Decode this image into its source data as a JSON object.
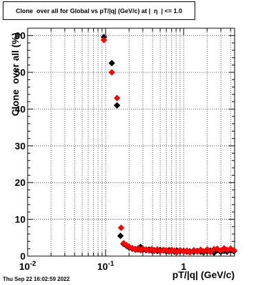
{
  "title": "Clone  over all for Global vs pT/|q| (GeV/c) at |  η  | <= 1.0",
  "timestamp": "Thu Sep 22 16:02:59 2022",
  "colors": {
    "black_series": "#000000",
    "red_series": "#ff0000",
    "grid": "#000000"
  },
  "chart_data": {
    "type": "scatter",
    "title": "Clone  over all for Global vs pT/|q| (GeV/c) at |  η  | <= 1.0",
    "xlabel": "pT/|q| (GeV/c)",
    "ylabel": "Clone  over all (%)",
    "x_scale": "log",
    "xlim": [
      0.01,
      4.5
    ],
    "ylim": [
      0,
      62
    ],
    "grid": true,
    "x_tick_labels": [
      "10^-2",
      "10^-1",
      "1"
    ],
    "y_tick_labels": [
      "0",
      "10",
      "20",
      "30",
      "40",
      "50",
      "60"
    ],
    "series": [
      {
        "color": "#000000",
        "marker": "diamond",
        "points": [
          [
            0.095,
            59.6
          ],
          [
            0.12,
            52.5
          ],
          [
            0.14,
            41.0
          ],
          [
            0.155,
            5.5
          ],
          [
            0.17,
            3.3
          ],
          [
            0.185,
            2.8
          ],
          [
            0.2,
            2.3
          ],
          [
            0.22,
            2.0
          ],
          [
            0.24,
            1.9
          ],
          [
            0.26,
            1.8
          ],
          [
            0.28,
            2.5
          ],
          [
            0.3,
            1.7
          ],
          [
            0.33,
            1.6
          ],
          [
            0.36,
            1.8
          ],
          [
            0.39,
            1.5
          ],
          [
            0.42,
            1.6
          ],
          [
            0.46,
            1.4
          ],
          [
            0.5,
            1.7
          ],
          [
            0.55,
            1.5
          ],
          [
            0.6,
            1.3
          ],
          [
            0.65,
            1.6
          ],
          [
            0.7,
            1.4
          ],
          [
            0.76,
            1.2
          ],
          [
            0.82,
            1.5
          ],
          [
            0.9,
            1.3
          ],
          [
            1.0,
            1.4
          ],
          [
            1.1,
            1.2
          ],
          [
            1.2,
            1.3
          ],
          [
            1.35,
            1.1
          ],
          [
            1.5,
            1.4
          ],
          [
            1.65,
            1.2
          ],
          [
            1.8,
            1.0
          ],
          [
            2.0,
            1.3
          ],
          [
            2.2,
            1.5
          ],
          [
            2.45,
            0.9
          ],
          [
            2.7,
            1.6
          ],
          [
            3.0,
            1.1
          ],
          [
            3.3,
            1.4
          ],
          [
            3.6,
            1.2
          ],
          [
            4.0,
            1.5
          ],
          [
            4.4,
            1.3
          ]
        ]
      },
      {
        "color": "#ff0000",
        "marker": "diamond",
        "points": [
          [
            0.095,
            58.8
          ],
          [
            0.12,
            50.0
          ],
          [
            0.14,
            43.0
          ],
          [
            0.158,
            7.7
          ],
          [
            0.17,
            3.5
          ],
          [
            0.185,
            3.0
          ],
          [
            0.2,
            2.5
          ],
          [
            0.22,
            2.2
          ],
          [
            0.24,
            1.7
          ],
          [
            0.26,
            2.1
          ],
          [
            0.28,
            1.6
          ],
          [
            0.3,
            2.0
          ],
          [
            0.33,
            1.8
          ],
          [
            0.36,
            1.5
          ],
          [
            0.39,
            1.9
          ],
          [
            0.42,
            1.4
          ],
          [
            0.46,
            1.8
          ],
          [
            0.5,
            1.3
          ],
          [
            0.55,
            1.7
          ],
          [
            0.6,
            1.6
          ],
          [
            0.65,
            1.2
          ],
          [
            0.7,
            1.7
          ],
          [
            0.76,
            1.5
          ],
          [
            0.82,
            1.1
          ],
          [
            0.9,
            1.6
          ],
          [
            1.0,
            1.2
          ],
          [
            1.1,
            1.5
          ],
          [
            1.2,
            1.0
          ],
          [
            1.35,
            1.6
          ],
          [
            1.5,
            1.2
          ],
          [
            1.65,
            1.7
          ],
          [
            1.8,
            1.3
          ],
          [
            2.0,
            1.8
          ],
          [
            2.2,
            1.1
          ],
          [
            2.45,
            1.9
          ],
          [
            2.7,
            2.0
          ],
          [
            3.0,
            1.5
          ],
          [
            3.3,
            2.1
          ],
          [
            3.6,
            1.7
          ],
          [
            4.0,
            2.0
          ],
          [
            4.4,
            1.6
          ]
        ]
      }
    ]
  }
}
